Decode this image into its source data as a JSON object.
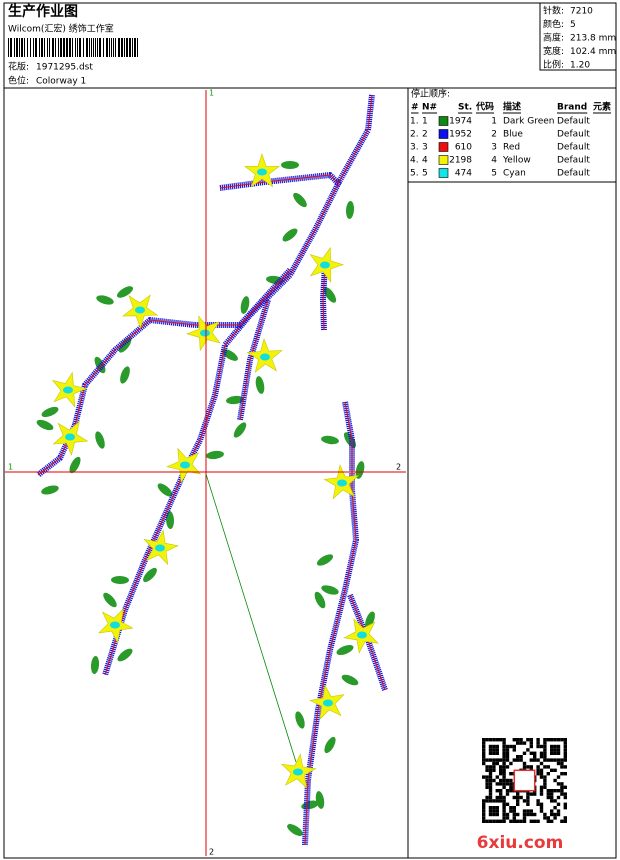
{
  "header": {
    "title": "生产作业图",
    "studio": "Wilcom(汇宏) 绣饰工作室",
    "design_label": "花版:",
    "design": "1971295.dst",
    "colorway_label": "色位:",
    "colorway": "Colorway 1"
  },
  "stats": [
    {
      "label": "针数:",
      "value": "7210"
    },
    {
      "label": "颜色:",
      "value": "5"
    },
    {
      "label": "高度:",
      "value": "213.8 mm"
    },
    {
      "label": "宽度:",
      "value": "102.4 mm"
    },
    {
      "label": "比例:",
      "value": "1.20"
    }
  ],
  "stop_sequence": {
    "title": "停止顺序:",
    "columns": [
      "#",
      "N#",
      "St.",
      "代码",
      "描述",
      "Brand",
      "元素"
    ],
    "rows": [
      {
        "index": "1.",
        "n": "1",
        "color": "#118811",
        "stitches": "1974",
        "code": "1",
        "description": "Dark Green",
        "brand": "Default"
      },
      {
        "index": "2.",
        "n": "2",
        "color": "#1010ee",
        "stitches": "1952",
        "code": "2",
        "description": "Blue",
        "brand": "Default"
      },
      {
        "index": "3.",
        "n": "3",
        "color": "#ee1010",
        "stitches": "610",
        "code": "3",
        "description": "Red",
        "brand": "Default"
      },
      {
        "index": "4.",
        "n": "4",
        "color": "#f2f20a",
        "stitches": "2198",
        "code": "4",
        "description": "Yellow",
        "brand": "Default"
      },
      {
        "index": "5.",
        "n": "5",
        "color": "#10e6e6",
        "stitches": "474",
        "code": "5",
        "description": "Cyan",
        "brand": "Default"
      }
    ]
  },
  "axis_markers": {
    "top": "1",
    "bottom": "2",
    "left": "1",
    "right": "2"
  },
  "watermark": "6xiu.com"
}
